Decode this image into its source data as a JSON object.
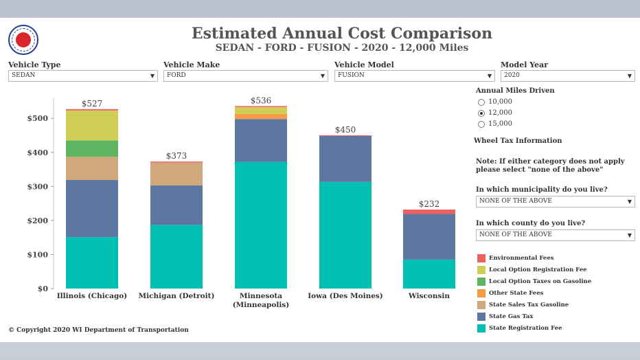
{
  "header": {
    "title": "Estimated Annual Cost Comparison",
    "subtitle": "SEDAN - FORD - FUSION - 2020 - 12,000 Miles"
  },
  "filters": {
    "vehicle_type": {
      "label": "Vehicle Type",
      "value": "SEDAN"
    },
    "vehicle_make": {
      "label": "Vehicle Make",
      "value": "FORD"
    },
    "vehicle_model": {
      "label": "Vehicle Model",
      "value": "FUSION"
    },
    "model_year": {
      "label": "Model Year",
      "value": "2020"
    }
  },
  "miles": {
    "label": "Annual Miles Driven",
    "options": [
      "10,000",
      "12,000",
      "15,000"
    ],
    "selected": "12,000"
  },
  "wheel_tax": {
    "heading": "Wheel Tax Information",
    "note": "Note: If either category does not apply please select \"none of the above\"",
    "municipality_label": "In which municipality do you live?",
    "municipality_value": "NONE OF THE ABOVE",
    "county_label": "In which county do you live?",
    "county_value": "NONE OF THE ABOVE"
  },
  "colors": {
    "Environmental Fees": "#f0625d",
    "Local Option Registration Fee": "#cfcf58",
    "Local Option Taxes on Gasoline": "#5eb460",
    "Other State Fees": "#f59c42",
    "State Sales Tax Gasoline": "#cfa97b",
    "State Gas Tax": "#5d77a3",
    "State Registration Fee": "#00bfb3"
  },
  "legend": [
    {
      "name": "Environmental Fees",
      "color": "#f0625d"
    },
    {
      "name": "Local Option Registration Fee",
      "color": "#cfcf58"
    },
    {
      "name": "Local Option Taxes on Gasoline",
      "color": "#5eb460"
    },
    {
      "name": "Other State Fees",
      "color": "#f59c42"
    },
    {
      "name": "State Sales Tax Gasoline",
      "color": "#cfa97b"
    },
    {
      "name": "State Gas Tax",
      "color": "#5d77a3"
    },
    {
      "name": "State Registration Fee",
      "color": "#00bfb3"
    }
  ],
  "chart_data": {
    "type": "bar",
    "stacked": true,
    "categories": [
      "Illinois (Chicago)",
      "Michigan (Detroit)",
      "Minnesota (Minneapolis)",
      "Iowa (Des Moines)",
      "Wisconsin"
    ],
    "totals": [
      "$527",
      "$373",
      "$536",
      "$450",
      "$232"
    ],
    "yticks": [
      "$0",
      "$100",
      "$200",
      "$300",
      "$400",
      "$500"
    ],
    "ylim": [
      0,
      560
    ],
    "series": [
      {
        "name": "State Registration Fee",
        "values": [
          151,
          187,
          372,
          313,
          85
        ]
      },
      {
        "name": "State Gas Tax",
        "values": [
          168,
          116,
          126,
          135,
          134
        ]
      },
      {
        "name": "State Sales Tax Gasoline",
        "values": [
          68,
          67,
          0,
          0,
          0
        ]
      },
      {
        "name": "Local Option Taxes on Gasoline",
        "values": [
          48,
          0,
          0,
          0,
          0
        ]
      },
      {
        "name": "Other State Fees",
        "values": [
          0,
          0,
          15,
          0,
          0
        ]
      },
      {
        "name": "Local Option Registration Fee",
        "values": [
          88,
          0,
          20,
          0,
          0
        ]
      },
      {
        "name": "Environmental Fees",
        "values": [
          4,
          3,
          3,
          2,
          13
        ]
      }
    ]
  },
  "footer": {
    "copyright": "© Copyright 2020 WI Department of Transportation"
  }
}
